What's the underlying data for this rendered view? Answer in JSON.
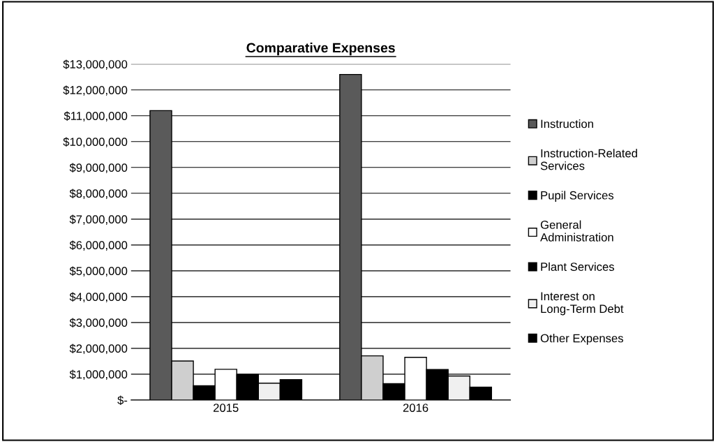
{
  "chart_data": {
    "type": "bar",
    "title": "Comparative Expenses",
    "categories": [
      "2015",
      "2016"
    ],
    "series": [
      {
        "name": "Instruction",
        "color": "#5a5a5a",
        "values": [
          11200000,
          12600000
        ]
      },
      {
        "name": "Instruction-Related Services",
        "color": "#cfcfcf",
        "values": [
          1510000,
          1710000
        ]
      },
      {
        "name": "Pupil Services",
        "color": "#000000",
        "values": [
          550000,
          630000
        ]
      },
      {
        "name": "General Administration",
        "color": "#ffffff",
        "values": [
          1190000,
          1650000
        ]
      },
      {
        "name": "Plant Services",
        "color": "#000000",
        "values": [
          990000,
          1180000
        ]
      },
      {
        "name": "Interest on Long-Term Debt",
        "color": "#f0f0f0",
        "values": [
          650000,
          930000
        ]
      },
      {
        "name": "Other Expenses",
        "color": "#000000",
        "values": [
          790000,
          500000
        ]
      }
    ],
    "ylim": [
      0,
      13000000
    ],
    "yticks": [
      {
        "value": 0,
        "label": "$-"
      },
      {
        "value": 1000000,
        "label": "$1,000,000"
      },
      {
        "value": 2000000,
        "label": "$2,000,000"
      },
      {
        "value": 3000000,
        "label": "$3,000,000"
      },
      {
        "value": 4000000,
        "label": "$4,000,000"
      },
      {
        "value": 5000000,
        "label": "$5,000,000"
      },
      {
        "value": 6000000,
        "label": "$6,000,000"
      },
      {
        "value": 7000000,
        "label": "$7,000,000"
      },
      {
        "value": 8000000,
        "label": "$8,000,000"
      },
      {
        "value": 9000000,
        "label": "$9,000,000"
      },
      {
        "value": 10000000,
        "label": "$10,000,000"
      },
      {
        "value": 11000000,
        "label": "$11,000,000"
      },
      {
        "value": 12000000,
        "label": "$12,000,000"
      },
      {
        "value": 13000000,
        "label": "$13,000,000"
      }
    ],
    "grid": "y",
    "legend": "right"
  }
}
